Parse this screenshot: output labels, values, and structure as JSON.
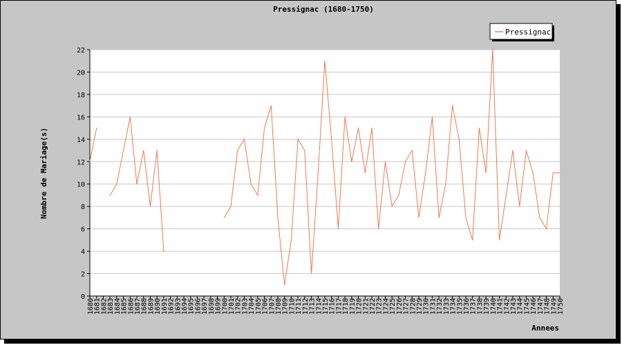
{
  "chart_data": {
    "type": "line",
    "title": "Pressignac (1680-1750)",
    "xlabel": "Annees",
    "ylabel": "Nombre de Mariage(s)",
    "ylim": [
      0,
      22
    ],
    "yticks": [
      0,
      2,
      4,
      6,
      8,
      10,
      12,
      14,
      16,
      18,
      20,
      22
    ],
    "grid": true,
    "legend_position": "top-right",
    "categories": [
      "1680",
      "1681",
      "1682",
      "1683",
      "1684",
      "1685",
      "1686",
      "1687",
      "1688",
      "1689",
      "1690",
      "1691",
      "1692",
      "1693",
      "1694",
      "1695",
      "1696",
      "1697",
      "1698",
      "1699",
      "1700",
      "1701",
      "1702",
      "1703",
      "1704",
      "1705",
      "1706",
      "1707",
      "1708",
      "1709",
      "1710",
      "1711",
      "1712",
      "1713",
      "1714",
      "1715",
      "1716",
      "1717",
      "1718",
      "1719",
      "1720",
      "1721",
      "1722",
      "1723",
      "1724",
      "1725",
      "1726",
      "1727",
      "1728",
      "1729",
      "1730",
      "1731",
      "1732",
      "1733",
      "1734",
      "1735",
      "1736",
      "1737",
      "1738",
      "1739",
      "1740",
      "1741",
      "1742",
      "1743",
      "1744",
      "1745",
      "1746",
      "1747",
      "1748",
      "1749",
      "1750"
    ],
    "series": [
      {
        "name": "Pressignac",
        "color": "#f07850",
        "values": [
          12,
          15,
          null,
          9,
          10,
          13,
          16,
          10,
          13,
          8,
          13,
          4,
          null,
          null,
          null,
          null,
          null,
          null,
          null,
          null,
          7,
          8,
          13,
          14,
          10,
          9,
          15,
          17,
          7,
          1,
          5,
          14,
          13,
          2,
          11,
          21,
          14,
          6,
          16,
          12,
          15,
          11,
          15,
          6,
          12,
          8,
          9,
          12,
          13,
          7,
          11,
          16,
          7,
          10,
          17,
          14,
          7,
          5,
          15,
          11,
          22,
          5,
          9,
          13,
          8,
          13,
          11,
          7,
          6,
          11,
          11
        ]
      }
    ]
  },
  "colors": {
    "background": "#c6c6c6",
    "plot_background": "#ffffff",
    "grid": "#c6c6c6",
    "series": "#f07850"
  }
}
